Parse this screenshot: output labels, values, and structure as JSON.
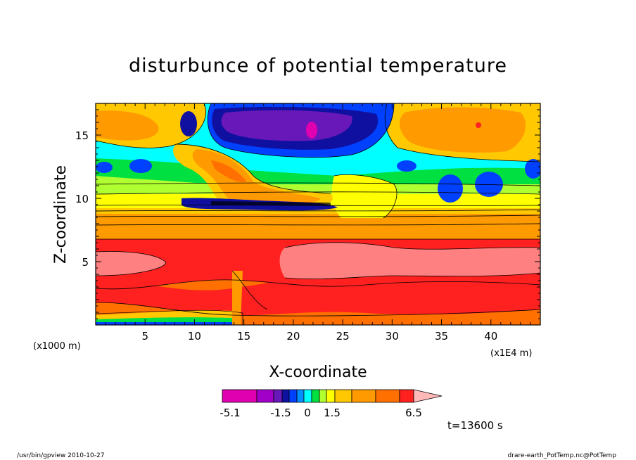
{
  "chart_data": {
    "type": "heatmap",
    "title": "disturbunce of potential temperature",
    "xlabel": "X-coordinate",
    "ylabel": "Z-coordinate",
    "x_unit_label": "(x1E4 m)",
    "y_unit_label": "(x1000 m)",
    "x_ticks": [
      "5",
      "10",
      "15",
      "20",
      "25",
      "30",
      "35",
      "40"
    ],
    "y_ticks": [
      "5",
      "10",
      "15"
    ],
    "xlim": [
      0,
      45
    ],
    "ylim": [
      0,
      17.5
    ],
    "time_label": "t=13600 s",
    "colorbar": {
      "levels": [
        -5.1,
        -4.0,
        -3.0,
        -2.0,
        -1.5,
        -1.0,
        -0.5,
        0,
        0.5,
        1.0,
        1.5,
        3.0,
        5.0,
        6.5
      ],
      "labels": [
        "-5.1",
        "-1.5",
        "0",
        "1.5",
        "6.5"
      ],
      "colors": [
        "#e000b0",
        "#a000c8",
        "#6818b8",
        "#1010a0",
        "#0040ff",
        "#0090ff",
        "#00ffff",
        "#00e040",
        "#b0ff30",
        "#ffff00",
        "#ffc800",
        "#ff9a00",
        "#ff7000",
        "#ff2020",
        "#ff8080",
        "#ffb8b8"
      ]
    }
  },
  "footer": {
    "left": "/usr/bin/gpview   2010-10-27",
    "right": "drare-earth_PotTemp.nc@PotTemp"
  }
}
